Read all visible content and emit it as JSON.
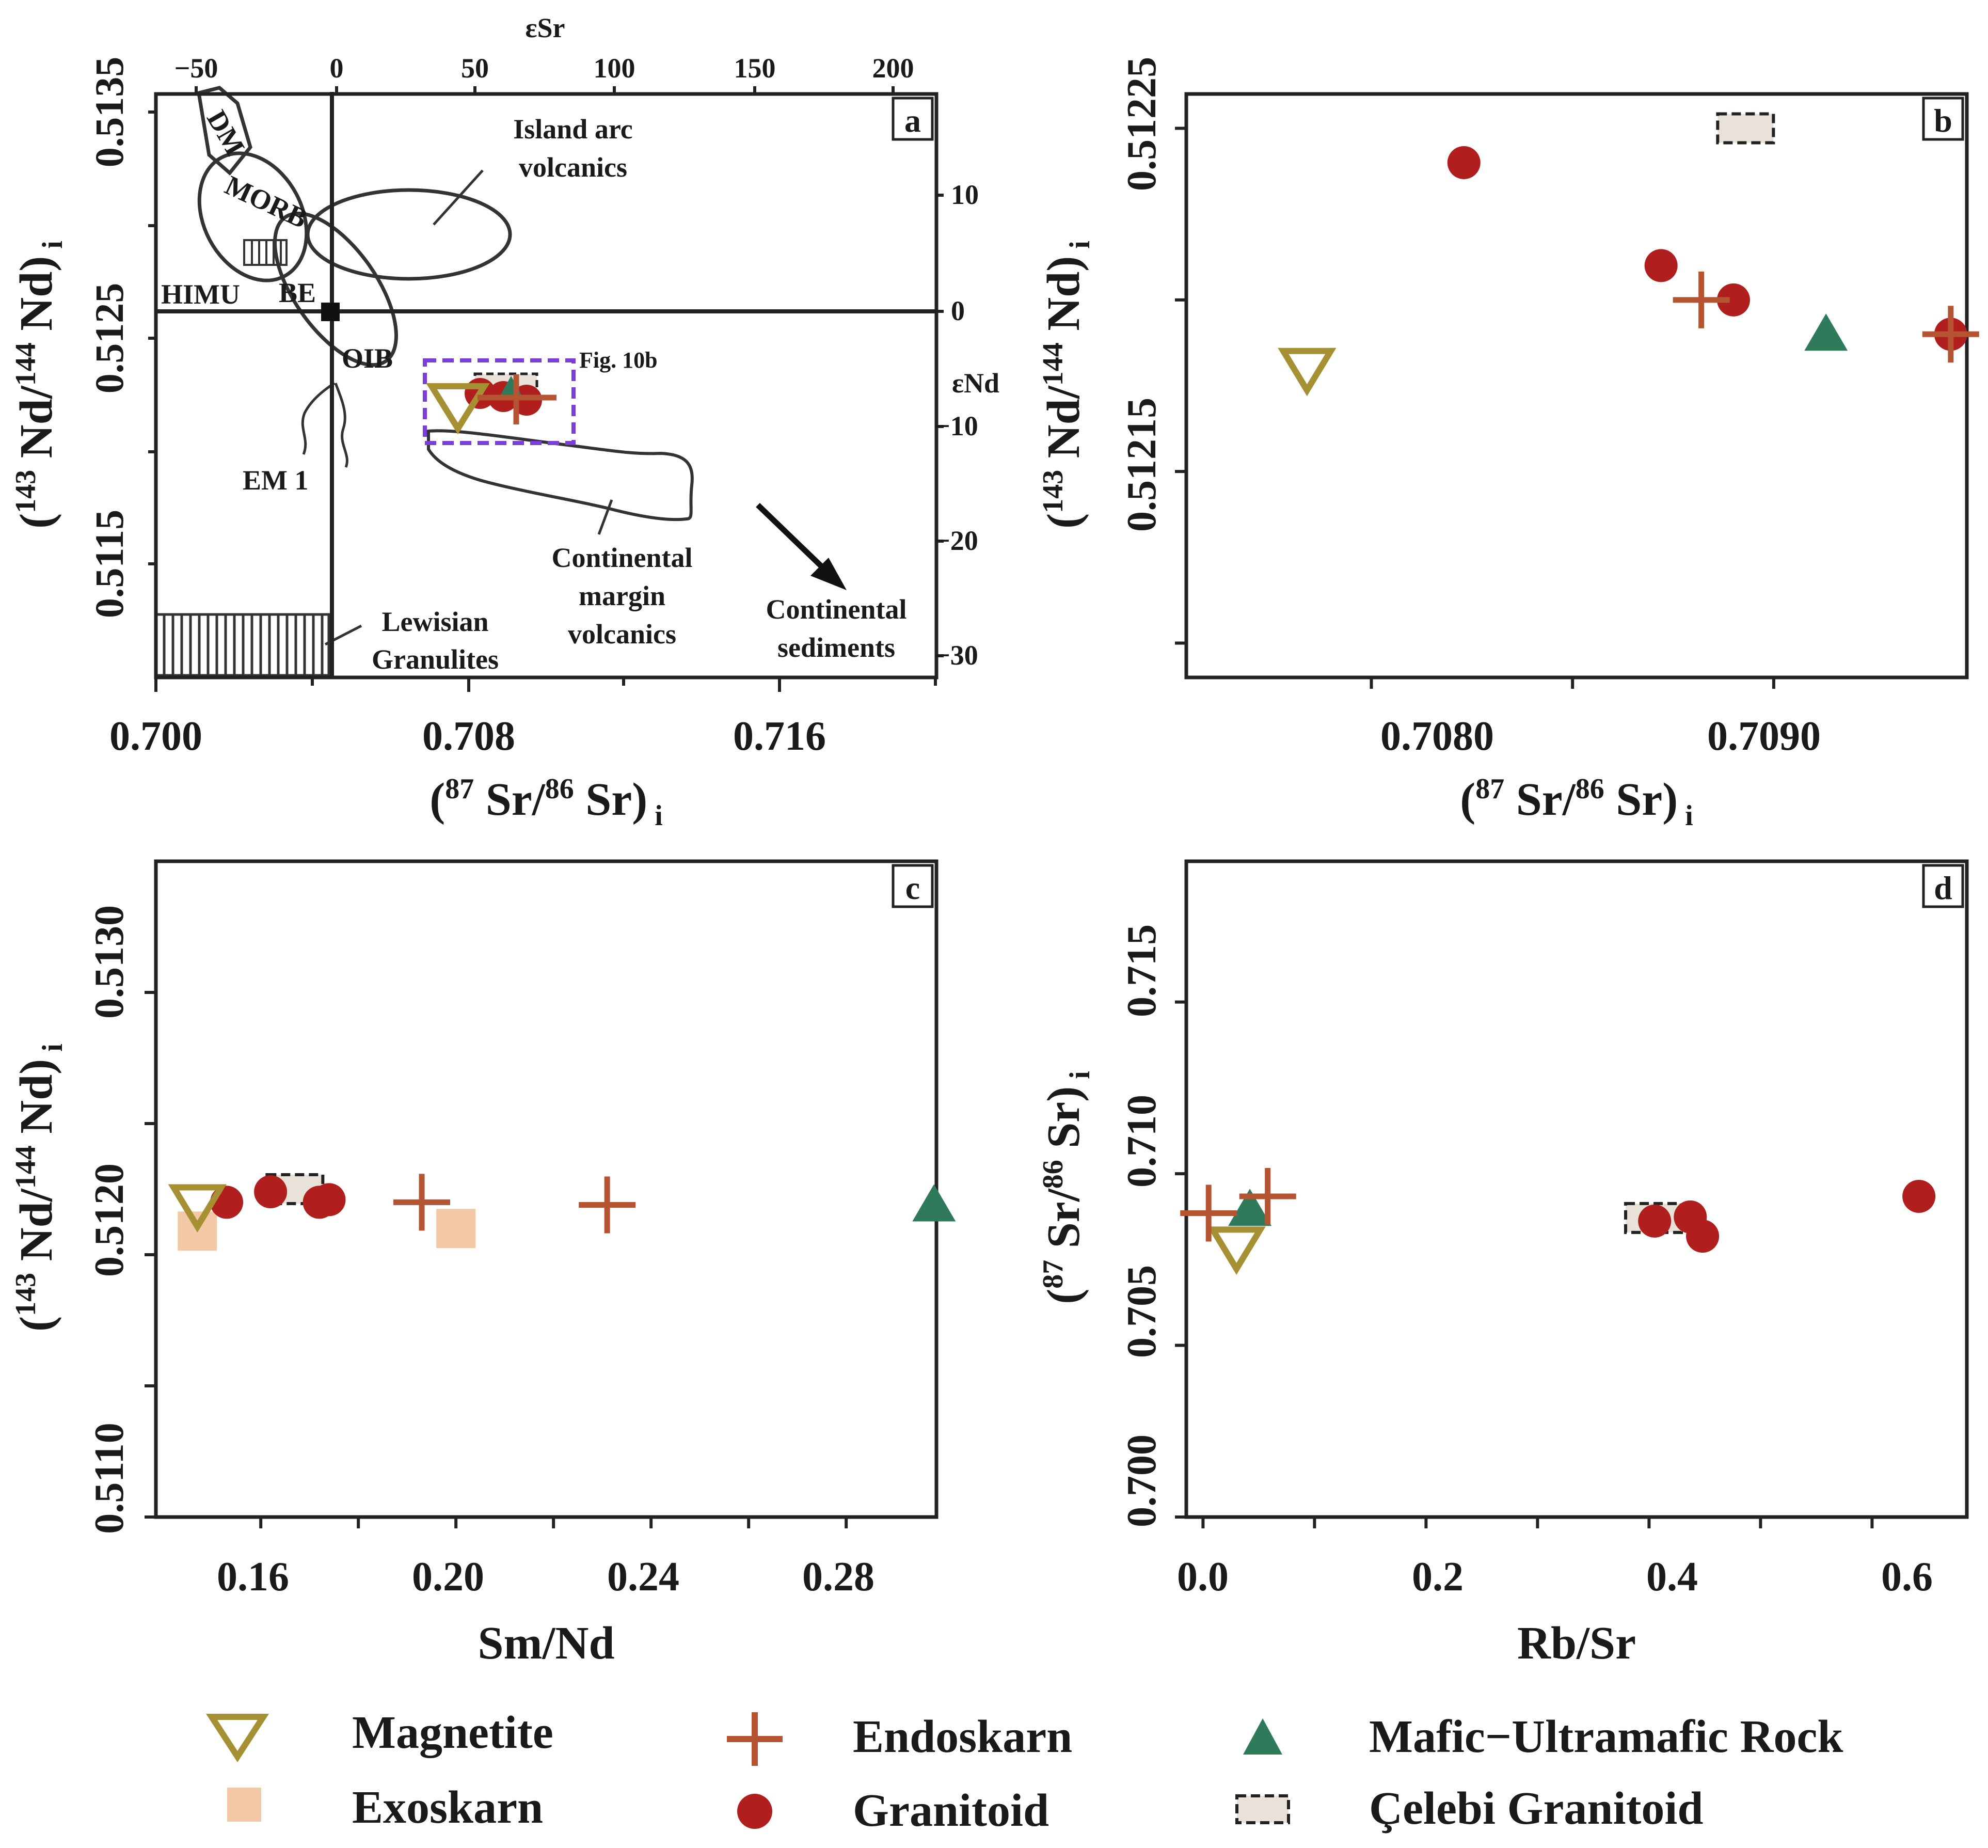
{
  "colors": {
    "magnetite": "#a59033",
    "exoskarn": "#f3c9a5",
    "endoskarn": "#b55433",
    "granitoid": "#b01e1e",
    "mafic": "#2f7a5b",
    "celebi_fill": "#e8e2d8",
    "highlight": "#7a3fd6",
    "axis": "#222222"
  },
  "legend": {
    "magnetite": "Magnetite",
    "exoskarn": "Exoskarn",
    "endoskarn": "Endoskarn",
    "granitoid": "Granitoid",
    "mafic": "Mafic−Ultramafic Rock",
    "celebi": "Çelebi Granitoid"
  },
  "chart_data": [
    {
      "panel": "a",
      "type": "scatter",
      "xlabel": "(87Sr/86Sr)i",
      "ylabel": "(143Nd/144Nd)i",
      "top_axis_label": "εSr",
      "right_axis_label": "εNd",
      "xlim": [
        0.7,
        0.7205
      ],
      "ylim": [
        0.51107,
        0.51358
      ],
      "x_ticks": [
        "0.700",
        "0.708",
        "0.716"
      ],
      "y_ticks": [
        "0.5115",
        "0.5125",
        "0.5135"
      ],
      "top_ticks": [
        "−50",
        "0",
        "50",
        "100",
        "150",
        "200"
      ],
      "right_ticks": [
        "10",
        "0",
        "−10",
        "−20",
        "−30"
      ],
      "fields": [
        "DM",
        "MORB",
        "HIMU",
        "BE",
        "OIB",
        "EM 1",
        "Island arc",
        "volcanics",
        "Continental",
        "margin",
        "volcanics",
        "Lewisian",
        "Granulites",
        "Continental",
        "sediments"
      ],
      "inset_label": "Fig. 10b",
      "bulk_earth": {
        "x": 0.7045,
        "y": 0.51264
      }
    },
    {
      "panel": "b",
      "type": "scatter",
      "xlabel": "(87Sr/86Sr)i",
      "ylabel": "(143Nd/144Nd)i",
      "xlim": [
        0.70754,
        0.70948
      ],
      "ylim": [
        0.51209,
        0.51226
      ],
      "x_ticks": [
        "0.7080",
        "0.7090"
      ],
      "y_ticks": [
        "0.51215",
        "0.51225"
      ],
      "series": [
        {
          "name": "Magnetite",
          "points": [
            [
              0.70784,
              0.51218
            ]
          ]
        },
        {
          "name": "Endoskarn",
          "points": [
            [
              0.70882,
              0.5122
            ],
            [
              0.70944,
              0.51219
            ]
          ]
        },
        {
          "name": "Granitoid",
          "points": [
            [
              0.70823,
              0.51224
            ],
            [
              0.70872,
              0.51221
            ],
            [
              0.7089,
              0.5122
            ],
            [
              0.70944,
              0.51219
            ]
          ]
        },
        {
          "name": "Mafic−Ultramafic Rock",
          "points": [
            [
              0.70913,
              0.51219
            ]
          ]
        },
        {
          "name": "Çelebi Granitoid",
          "points": [
            [
              0.70893,
              0.51225
            ]
          ]
        }
      ]
    },
    {
      "panel": "c",
      "type": "scatter",
      "xlabel": "Sm/Nd",
      "ylabel": "(143Nd/144Nd)i",
      "xlim": [
        0.1385,
        0.2985
      ],
      "ylim": [
        0.511,
        0.5135
      ],
      "x_ticks": [
        "0.16",
        "0.20",
        "0.24",
        "0.28"
      ],
      "y_ticks": [
        "0.5110",
        "0.5120",
        "0.5130"
      ],
      "series": [
        {
          "name": "Magnetite",
          "points": [
            [
              0.147,
              0.51219
            ]
          ]
        },
        {
          "name": "Exoskarn",
          "points": [
            [
              0.147,
              0.51209
            ],
            [
              0.2,
              0.5121
            ]
          ]
        },
        {
          "name": "Endoskarn",
          "points": [
            [
              0.193,
              0.5122
            ],
            [
              0.231,
              0.51219
            ]
          ]
        },
        {
          "name": "Granitoid",
          "points": [
            [
              0.153,
              0.5122
            ],
            [
              0.162,
              0.51224
            ],
            [
              0.172,
              0.5122
            ],
            [
              0.174,
              0.51221
            ]
          ]
        },
        {
          "name": "Mafic−Ultramafic Rock",
          "points": [
            [
              0.298,
              0.51219
            ]
          ]
        },
        {
          "name": "Çelebi Granitoid",
          "points": [
            [
              0.167,
              0.51225
            ]
          ]
        }
      ]
    },
    {
      "panel": "d",
      "type": "scatter",
      "xlabel": "Rb/Sr",
      "ylabel": "(87Sr/86Sr)i",
      "xlim": [
        -0.015,
        0.685
      ],
      "ylim": [
        0.7,
        0.7191
      ],
      "x_ticks": [
        "0.0",
        "0.2",
        "0.4",
        "0.6"
      ],
      "y_ticks": [
        "0.700",
        "0.705",
        "0.710",
        "0.715"
      ],
      "series": [
        {
          "name": "Magnetite",
          "points": [
            [
              0.03,
              0.70786
            ]
          ]
        },
        {
          "name": "Endoskarn",
          "points": [
            [
              0.005,
              0.70885
            ],
            [
              0.058,
              0.70934
            ]
          ]
        },
        {
          "name": "Granitoid",
          "points": [
            [
              0.405,
              0.70862
            ],
            [
              0.437,
              0.70874
            ],
            [
              0.448,
              0.70818
            ],
            [
              0.642,
              0.70934
            ]
          ]
        },
        {
          "name": "Mafic−Ultramafic Rock",
          "points": [
            [
              0.042,
              0.70896
            ]
          ]
        },
        {
          "name": "Çelebi Granitoid",
          "points": [
            [
              0.404,
              0.70871
            ]
          ]
        }
      ]
    }
  ]
}
